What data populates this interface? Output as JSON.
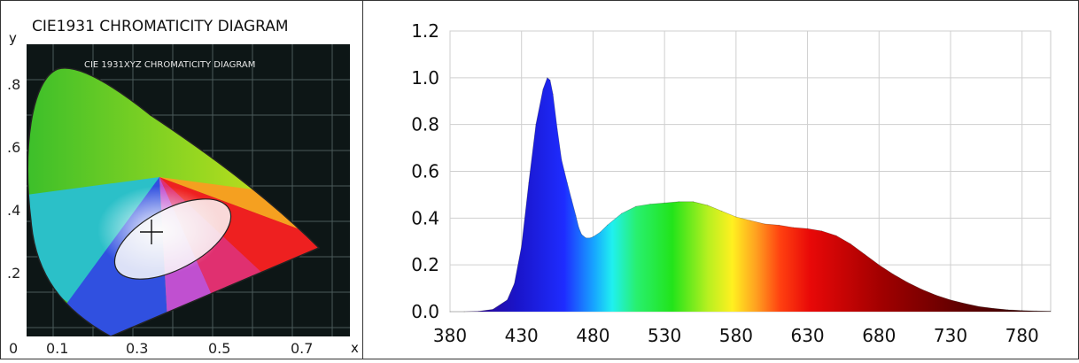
{
  "left_panel": {
    "title": "CIE1931 CHROMATICITY DIAGRAM",
    "inner_title": "CIE 1931XYZ CHROMATICITY DIAGRAM",
    "y_axis_label": "y",
    "x_axis_label": "x",
    "y_ticks": [
      ".8",
      ".6",
      ".4",
      ".2"
    ],
    "x_ticks": [
      "0",
      "0.1",
      "0.3",
      "0.5",
      "0.7"
    ],
    "marked_point": {
      "x": 0.32,
      "y": 0.33
    },
    "colors": {
      "background": "#0d1616",
      "grid": "#4a5a5a"
    }
  },
  "chart_data": {
    "type": "area",
    "title": "",
    "xlabel": "",
    "ylabel": "",
    "xlim": [
      380,
      800
    ],
    "ylim": [
      0,
      1.2
    ],
    "x_ticks": [
      380,
      430,
      480,
      530,
      580,
      630,
      680,
      730,
      780
    ],
    "y_ticks": [
      "0.0",
      "0.2",
      "0.4",
      "0.6",
      "0.8",
      "1.0",
      "1.2"
    ],
    "grid": true,
    "x": [
      380,
      390,
      400,
      410,
      420,
      425,
      430,
      435,
      440,
      445,
      448,
      450,
      452,
      455,
      458,
      460,
      462,
      465,
      468,
      470,
      472,
      475,
      478,
      480,
      485,
      490,
      500,
      510,
      520,
      530,
      540,
      550,
      560,
      570,
      580,
      590,
      600,
      610,
      620,
      630,
      640,
      650,
      660,
      670,
      680,
      690,
      700,
      710,
      720,
      730,
      740,
      750,
      760,
      770,
      780,
      790,
      800
    ],
    "values": [
      0.0,
      0.0,
      0.002,
      0.01,
      0.05,
      0.12,
      0.28,
      0.55,
      0.8,
      0.95,
      1.0,
      0.99,
      0.93,
      0.78,
      0.65,
      0.6,
      0.55,
      0.48,
      0.41,
      0.36,
      0.33,
      0.315,
      0.315,
      0.32,
      0.34,
      0.37,
      0.42,
      0.45,
      0.46,
      0.465,
      0.47,
      0.47,
      0.455,
      0.43,
      0.405,
      0.39,
      0.375,
      0.37,
      0.36,
      0.355,
      0.345,
      0.325,
      0.29,
      0.245,
      0.2,
      0.16,
      0.125,
      0.095,
      0.07,
      0.05,
      0.035,
      0.022,
      0.014,
      0.008,
      0.005,
      0.003,
      0.002
    ]
  }
}
